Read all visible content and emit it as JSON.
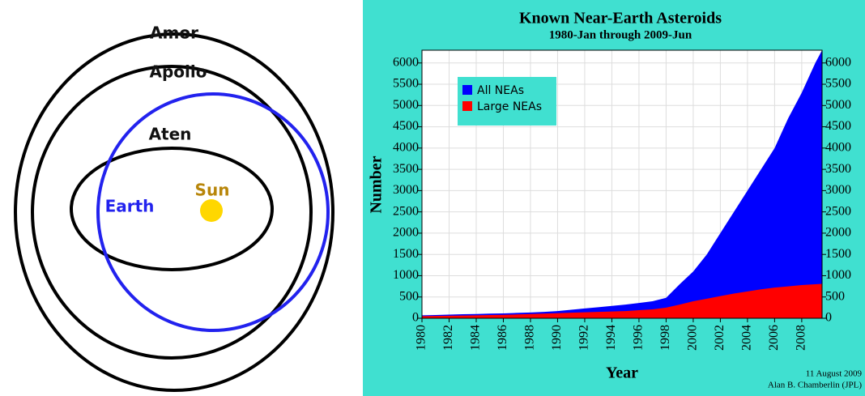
{
  "diagram": {
    "labels": {
      "amor": "Amor",
      "apollo": "Apollo",
      "aten": "Aten",
      "earth": "Earth",
      "sun": "Sun"
    }
  },
  "chart_data": {
    "type": "area",
    "title": "Known Near-Earth Asteroids",
    "subtitle": "1980-Jan through 2009-Jun",
    "x_label": "Year",
    "y_label": "Number",
    "credit_date": "11 August 2009",
    "credit_author": "Alan B. Chamberlin (JPL)",
    "x": [
      1980,
      1981,
      1982,
      1983,
      1984,
      1985,
      1986,
      1987,
      1988,
      1989,
      1990,
      1991,
      1992,
      1993,
      1994,
      1995,
      1996,
      1997,
      1998,
      1999,
      2000,
      2001,
      2002,
      2003,
      2004,
      2005,
      2006,
      2007,
      2008,
      2009,
      2009.5
    ],
    "series": [
      {
        "name": "All NEAs",
        "color": "#0000ff",
        "values": [
          70,
          75,
          85,
          95,
          100,
          110,
          115,
          125,
          135,
          150,
          170,
          200,
          230,
          260,
          290,
          320,
          360,
          400,
          480,
          800,
          1100,
          1500,
          2000,
          2500,
          3000,
          3500,
          4000,
          4700,
          5300,
          6000,
          6300
        ]
      },
      {
        "name": "Large NEAs",
        "color": "#ff0000",
        "values": [
          50,
          55,
          60,
          65,
          70,
          75,
          80,
          90,
          100,
          110,
          120,
          130,
          140,
          150,
          160,
          170,
          190,
          210,
          250,
          320,
          400,
          460,
          520,
          580,
          630,
          680,
          720,
          750,
          780,
          800,
          810
        ]
      }
    ],
    "xlim": [
      1980,
      2009.5
    ],
    "xticks": [
      1980,
      1982,
      1984,
      1986,
      1988,
      1990,
      1992,
      1994,
      1996,
      1998,
      2000,
      2002,
      2004,
      2006,
      2008
    ],
    "ylim": [
      0,
      6300
    ],
    "yticks": [
      0,
      500,
      1000,
      1500,
      2000,
      2500,
      3000,
      3500,
      4000,
      4500,
      5000,
      5500,
      6000
    ],
    "y2lim": [
      0,
      6300
    ],
    "y2ticks": [
      0,
      500,
      1000,
      1500,
      2000,
      2500,
      3000,
      3500,
      4000,
      4500,
      5000,
      5500,
      6000
    ],
    "grid": true,
    "legend": "upper-left",
    "background": "#40e0d0"
  }
}
